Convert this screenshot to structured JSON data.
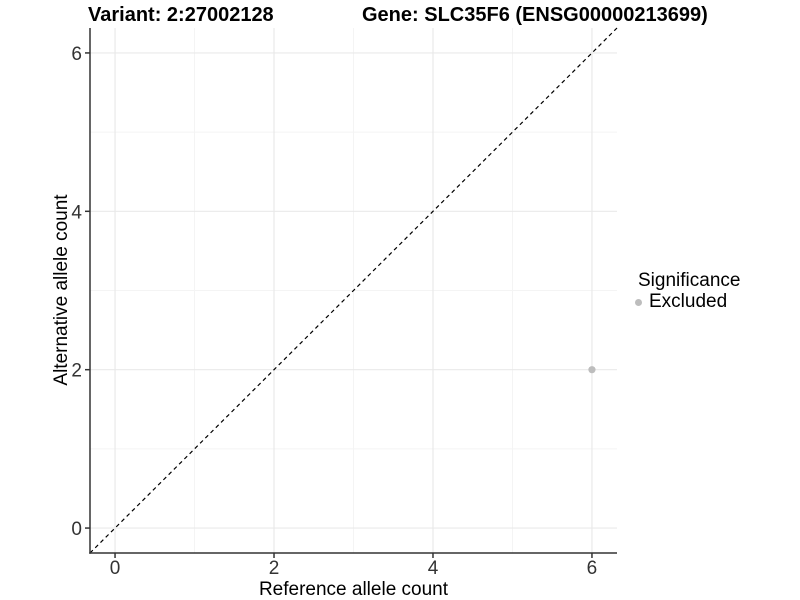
{
  "figure": {
    "background": "#ffffff"
  },
  "chart_data": {
    "type": "scatter",
    "titles": {
      "left": "Variant: 2:27002128",
      "right": "Gene: SLC35F6 (ENSG00000213699)"
    },
    "xlabel": "Reference allele count",
    "ylabel": "Alternative allele count",
    "xlim": [
      -0.315,
      6.315
    ],
    "ylim": [
      -0.315,
      6.315
    ],
    "x_ticks": [
      0,
      2,
      4,
      6
    ],
    "y_ticks": [
      0,
      2,
      4,
      6
    ],
    "x_minor_ticks": [
      1,
      3,
      5
    ],
    "y_minor_ticks": [
      1,
      3,
      5
    ],
    "grid": "major+minor",
    "identity_line": {
      "equation": "y = x",
      "style": "dashed",
      "color": "#000000"
    },
    "series": [
      {
        "name": "Excluded",
        "color": "#bdbdbd",
        "points": [
          {
            "x": 6,
            "y": 2
          }
        ]
      }
    ],
    "legend": {
      "title": "Significance",
      "position": "right",
      "entries": [
        {
          "label": "Excluded",
          "color": "#bdbdbd"
        }
      ]
    },
    "style": {
      "grid_major_color": "#e9e9e9",
      "grid_minor_color": "#f4f4f4",
      "axis_color": "#333333",
      "tick_label_color": "#333333",
      "point_radius": 3.6
    }
  }
}
